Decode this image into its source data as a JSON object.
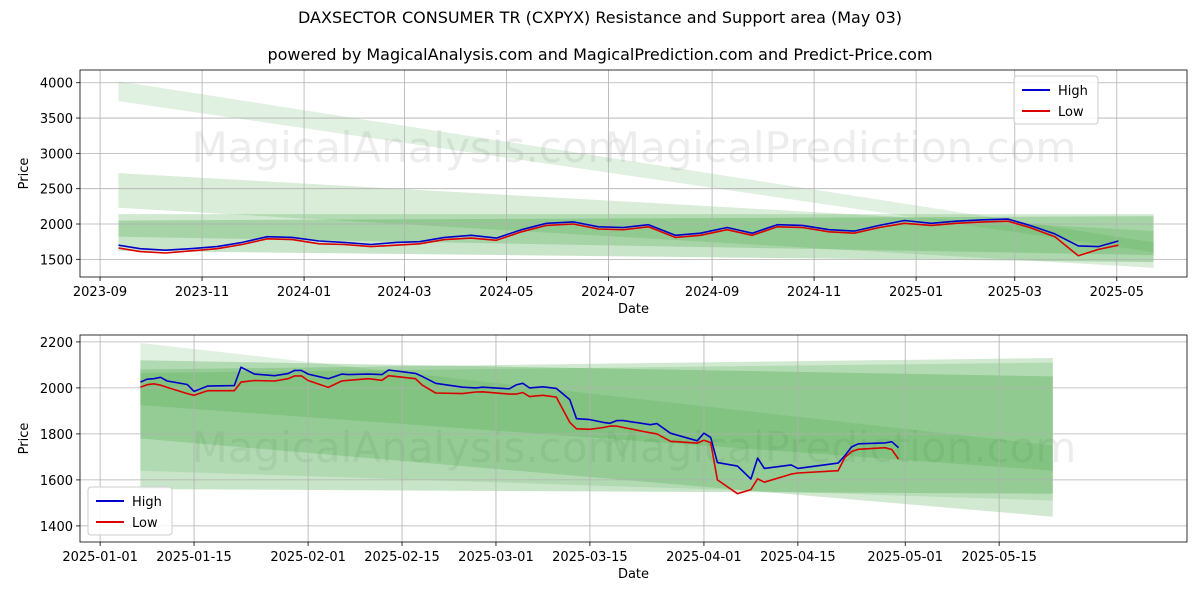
{
  "title": "DAXSECTOR CONSUMER TR (CXPYX) Resistance and Support area (May 03)",
  "subtitle": "powered by MagicalAnalysis.com and MagicalPrediction.com and Predict-Price.com",
  "watermarks": [
    "MagicalAnalysis.com",
    "MagicalPrediction.com"
  ],
  "colors": {
    "high": "#0000cc",
    "low": "#dd0000",
    "band": "#2e9a2e"
  },
  "chart_data": [
    {
      "type": "line",
      "xlabel": "Date",
      "ylabel": "Price",
      "xlim": [
        "2023-08-20",
        "2025-06-12"
      ],
      "ylim": [
        1250,
        4180
      ],
      "x_ticks": [
        "2023-09",
        "2023-11",
        "2024-01",
        "2024-03",
        "2024-05",
        "2024-07",
        "2024-09",
        "2024-11",
        "2025-01",
        "2025-03",
        "2025-05"
      ],
      "y_ticks": [
        1500,
        2000,
        2500,
        3000,
        3500,
        4000
      ],
      "legend": {
        "position": "top-right",
        "entries": [
          "High",
          "Low"
        ]
      },
      "grid": true,
      "series": [
        {
          "name": "High",
          "x": [
            "2023-09-12",
            "2023-09-25",
            "2023-10-10",
            "2023-10-25",
            "2023-11-10",
            "2023-11-25",
            "2023-12-10",
            "2023-12-25",
            "2024-01-10",
            "2024-01-25",
            "2024-02-10",
            "2024-02-25",
            "2024-03-10",
            "2024-03-25",
            "2024-04-10",
            "2024-04-25",
            "2024-05-10",
            "2024-05-25",
            "2024-06-10",
            "2024-06-25",
            "2024-07-10",
            "2024-07-25",
            "2024-08-10",
            "2024-08-25",
            "2024-09-10",
            "2024-09-25",
            "2024-10-10",
            "2024-10-25",
            "2024-11-10",
            "2024-11-25",
            "2024-12-10",
            "2024-12-25",
            "2025-01-10",
            "2025-01-25",
            "2025-02-10",
            "2025-02-25",
            "2025-03-10",
            "2025-03-25",
            "2025-04-08",
            "2025-04-20",
            "2025-05-02"
          ],
          "values": [
            1700,
            1650,
            1630,
            1650,
            1680,
            1740,
            1820,
            1810,
            1760,
            1740,
            1710,
            1740,
            1750,
            1810,
            1840,
            1800,
            1920,
            2010,
            2030,
            1960,
            1950,
            1990,
            1840,
            1870,
            1950,
            1870,
            1990,
            1980,
            1920,
            1900,
            1980,
            2050,
            2010,
            2040,
            2060,
            2070,
            1980,
            1860,
            1690,
            1680,
            1760
          ]
        },
        {
          "name": "Low",
          "x": [
            "2023-09-12",
            "2023-09-25",
            "2023-10-10",
            "2023-10-25",
            "2023-11-10",
            "2023-11-25",
            "2023-12-10",
            "2023-12-25",
            "2024-01-10",
            "2024-01-25",
            "2024-02-10",
            "2024-02-25",
            "2024-03-10",
            "2024-03-25",
            "2024-04-10",
            "2024-04-25",
            "2024-05-10",
            "2024-05-25",
            "2024-06-10",
            "2024-06-25",
            "2024-07-10",
            "2024-07-25",
            "2024-08-10",
            "2024-08-25",
            "2024-09-10",
            "2024-09-25",
            "2024-10-10",
            "2024-10-25",
            "2024-11-10",
            "2024-11-25",
            "2024-12-10",
            "2024-12-25",
            "2025-01-10",
            "2025-01-25",
            "2025-02-10",
            "2025-02-25",
            "2025-03-10",
            "2025-03-25",
            "2025-04-08",
            "2025-04-20",
            "2025-05-02"
          ],
          "values": [
            1660,
            1610,
            1590,
            1620,
            1650,
            1710,
            1790,
            1780,
            1720,
            1710,
            1680,
            1700,
            1720,
            1780,
            1800,
            1770,
            1890,
            1980,
            2000,
            1930,
            1920,
            1960,
            1810,
            1840,
            1920,
            1840,
            1960,
            1950,
            1890,
            1870,
            1950,
            2010,
            1980,
            2010,
            2030,
            2040,
            1950,
            1820,
            1550,
            1640,
            1700
          ]
        }
      ],
      "bands": [
        {
          "x": [
            "2023-09-12",
            "2025-05-23"
          ],
          "upper": [
            4020,
            1740
          ],
          "lower": [
            3740,
            1600
          ]
        },
        {
          "x": [
            "2023-09-12",
            "2025-05-23"
          ],
          "upper": [
            2720,
            1900
          ],
          "lower": [
            2230,
            1380
          ]
        },
        {
          "x": [
            "2023-09-12",
            "2025-05-23"
          ],
          "upper": [
            2140,
            2140
          ],
          "lower": [
            1820,
            1560
          ]
        },
        {
          "x": [
            "2023-09-12",
            "2025-05-23"
          ],
          "upper": [
            2050,
            2110
          ],
          "lower": [
            1620,
            1460
          ]
        }
      ]
    },
    {
      "type": "line",
      "xlabel": "Date",
      "ylabel": "Price",
      "xlim": [
        "2024-12-29",
        "2025-06-12"
      ],
      "ylim": [
        1330,
        2230
      ],
      "x_ticks": [
        "2025-01-01",
        "2025-01-15",
        "2025-02-01",
        "2025-02-15",
        "2025-03-01",
        "2025-03-15",
        "2025-04-01",
        "2025-04-15",
        "2025-05-01",
        "2025-05-15"
      ],
      "y_ticks": [
        1400,
        1600,
        1800,
        2000,
        2200
      ],
      "legend": {
        "position": "bottom-left",
        "entries": [
          "High",
          "Low"
        ]
      },
      "grid": true,
      "series": [
        {
          "name": "High",
          "x": [
            "2025-01-07",
            "2025-01-08",
            "2025-01-09",
            "2025-01-10",
            "2025-01-11",
            "2025-01-14",
            "2025-01-15",
            "2025-01-17",
            "2025-01-21",
            "2025-01-22",
            "2025-01-24",
            "2025-01-27",
            "2025-01-29",
            "2025-01-30",
            "2025-01-31",
            "2025-02-01",
            "2025-02-04",
            "2025-02-06",
            "2025-02-07",
            "2025-02-10",
            "2025-02-12",
            "2025-02-13",
            "2025-02-17",
            "2025-02-18",
            "2025-02-20",
            "2025-02-24",
            "2025-02-26",
            "2025-02-27",
            "2025-03-03",
            "2025-03-04",
            "2025-03-05",
            "2025-03-06",
            "2025-03-08",
            "2025-03-10",
            "2025-03-12",
            "2025-03-13",
            "2025-03-15",
            "2025-03-17",
            "2025-03-18",
            "2025-03-19",
            "2025-03-20",
            "2025-03-24",
            "2025-03-25",
            "2025-03-27",
            "2025-03-31",
            "2025-04-01",
            "2025-04-02",
            "2025-04-03",
            "2025-04-06",
            "2025-04-08",
            "2025-04-09",
            "2025-04-10",
            "2025-04-14",
            "2025-04-15",
            "2025-04-21",
            "2025-04-22",
            "2025-04-23",
            "2025-04-24",
            "2025-04-28",
            "2025-04-29",
            "2025-04-30"
          ],
          "values": [
            2025,
            2038,
            2040,
            2046,
            2030,
            2015,
            1985,
            2008,
            2010,
            2090,
            2060,
            2053,
            2062,
            2076,
            2076,
            2060,
            2040,
            2060,
            2058,
            2060,
            2058,
            2078,
            2063,
            2050,
            2020,
            2003,
            2000,
            2003,
            1996,
            2013,
            2020,
            2000,
            2005,
            1998,
            1949,
            1866,
            1862,
            1850,
            1846,
            1858,
            1858,
            1840,
            1845,
            1803,
            1770,
            1803,
            1785,
            1675,
            1660,
            1604,
            1695,
            1650,
            1665,
            1650,
            1673,
            1705,
            1743,
            1757,
            1761,
            1766,
            1740
          ]
        },
        {
          "name": "Low",
          "x": [
            "2025-01-07",
            "2025-01-08",
            "2025-01-09",
            "2025-01-10",
            "2025-01-11",
            "2025-01-14",
            "2025-01-15",
            "2025-01-17",
            "2025-01-21",
            "2025-01-22",
            "2025-01-24",
            "2025-01-27",
            "2025-01-29",
            "2025-01-30",
            "2025-01-31",
            "2025-02-01",
            "2025-02-04",
            "2025-02-06",
            "2025-02-07",
            "2025-02-10",
            "2025-02-12",
            "2025-02-13",
            "2025-02-17",
            "2025-02-18",
            "2025-02-20",
            "2025-02-24",
            "2025-02-26",
            "2025-02-27",
            "2025-03-03",
            "2025-03-04",
            "2025-03-05",
            "2025-03-06",
            "2025-03-08",
            "2025-03-10",
            "2025-03-12",
            "2025-03-13",
            "2025-03-15",
            "2025-03-17",
            "2025-03-18",
            "2025-03-19",
            "2025-03-20",
            "2025-03-24",
            "2025-03-25",
            "2025-03-27",
            "2025-03-31",
            "2025-04-01",
            "2025-04-02",
            "2025-04-03",
            "2025-04-06",
            "2025-04-08",
            "2025-04-09",
            "2025-04-10",
            "2025-04-14",
            "2025-04-15",
            "2025-04-21",
            "2025-04-22",
            "2025-04-23",
            "2025-04-24",
            "2025-04-28",
            "2025-04-29",
            "2025-04-30"
          ],
          "values": [
            2003,
            2014,
            2018,
            2012,
            2002,
            1975,
            1968,
            1988,
            1988,
            2025,
            2032,
            2030,
            2040,
            2052,
            2052,
            2032,
            2002,
            2030,
            2033,
            2040,
            2033,
            2053,
            2040,
            2012,
            1978,
            1975,
            1982,
            1983,
            1973,
            1973,
            1980,
            1962,
            1968,
            1960,
            1850,
            1822,
            1820,
            1828,
            1834,
            1834,
            1828,
            1805,
            1800,
            1768,
            1760,
            1772,
            1762,
            1600,
            1540,
            1558,
            1605,
            1590,
            1625,
            1630,
            1640,
            1697,
            1723,
            1733,
            1740,
            1732,
            1690
          ]
        }
      ],
      "bands": [
        {
          "x": [
            "2025-01-07",
            "2025-05-23"
          ],
          "upper": [
            2195,
            1750
          ],
          "lower": [
            1640,
            1510
          ]
        },
        {
          "x": [
            "2025-01-07",
            "2025-05-23"
          ],
          "upper": [
            2065,
            2110
          ],
          "lower": [
            1925,
            1640
          ]
        },
        {
          "x": [
            "2025-01-07",
            "2025-05-23"
          ],
          "upper": [
            2080,
            2130
          ],
          "lower": [
            1780,
            1440
          ]
        },
        {
          "x": [
            "2025-01-07",
            "2025-05-23"
          ],
          "upper": [
            2120,
            2050
          ],
          "lower": [
            1560,
            1540
          ]
        }
      ]
    }
  ]
}
